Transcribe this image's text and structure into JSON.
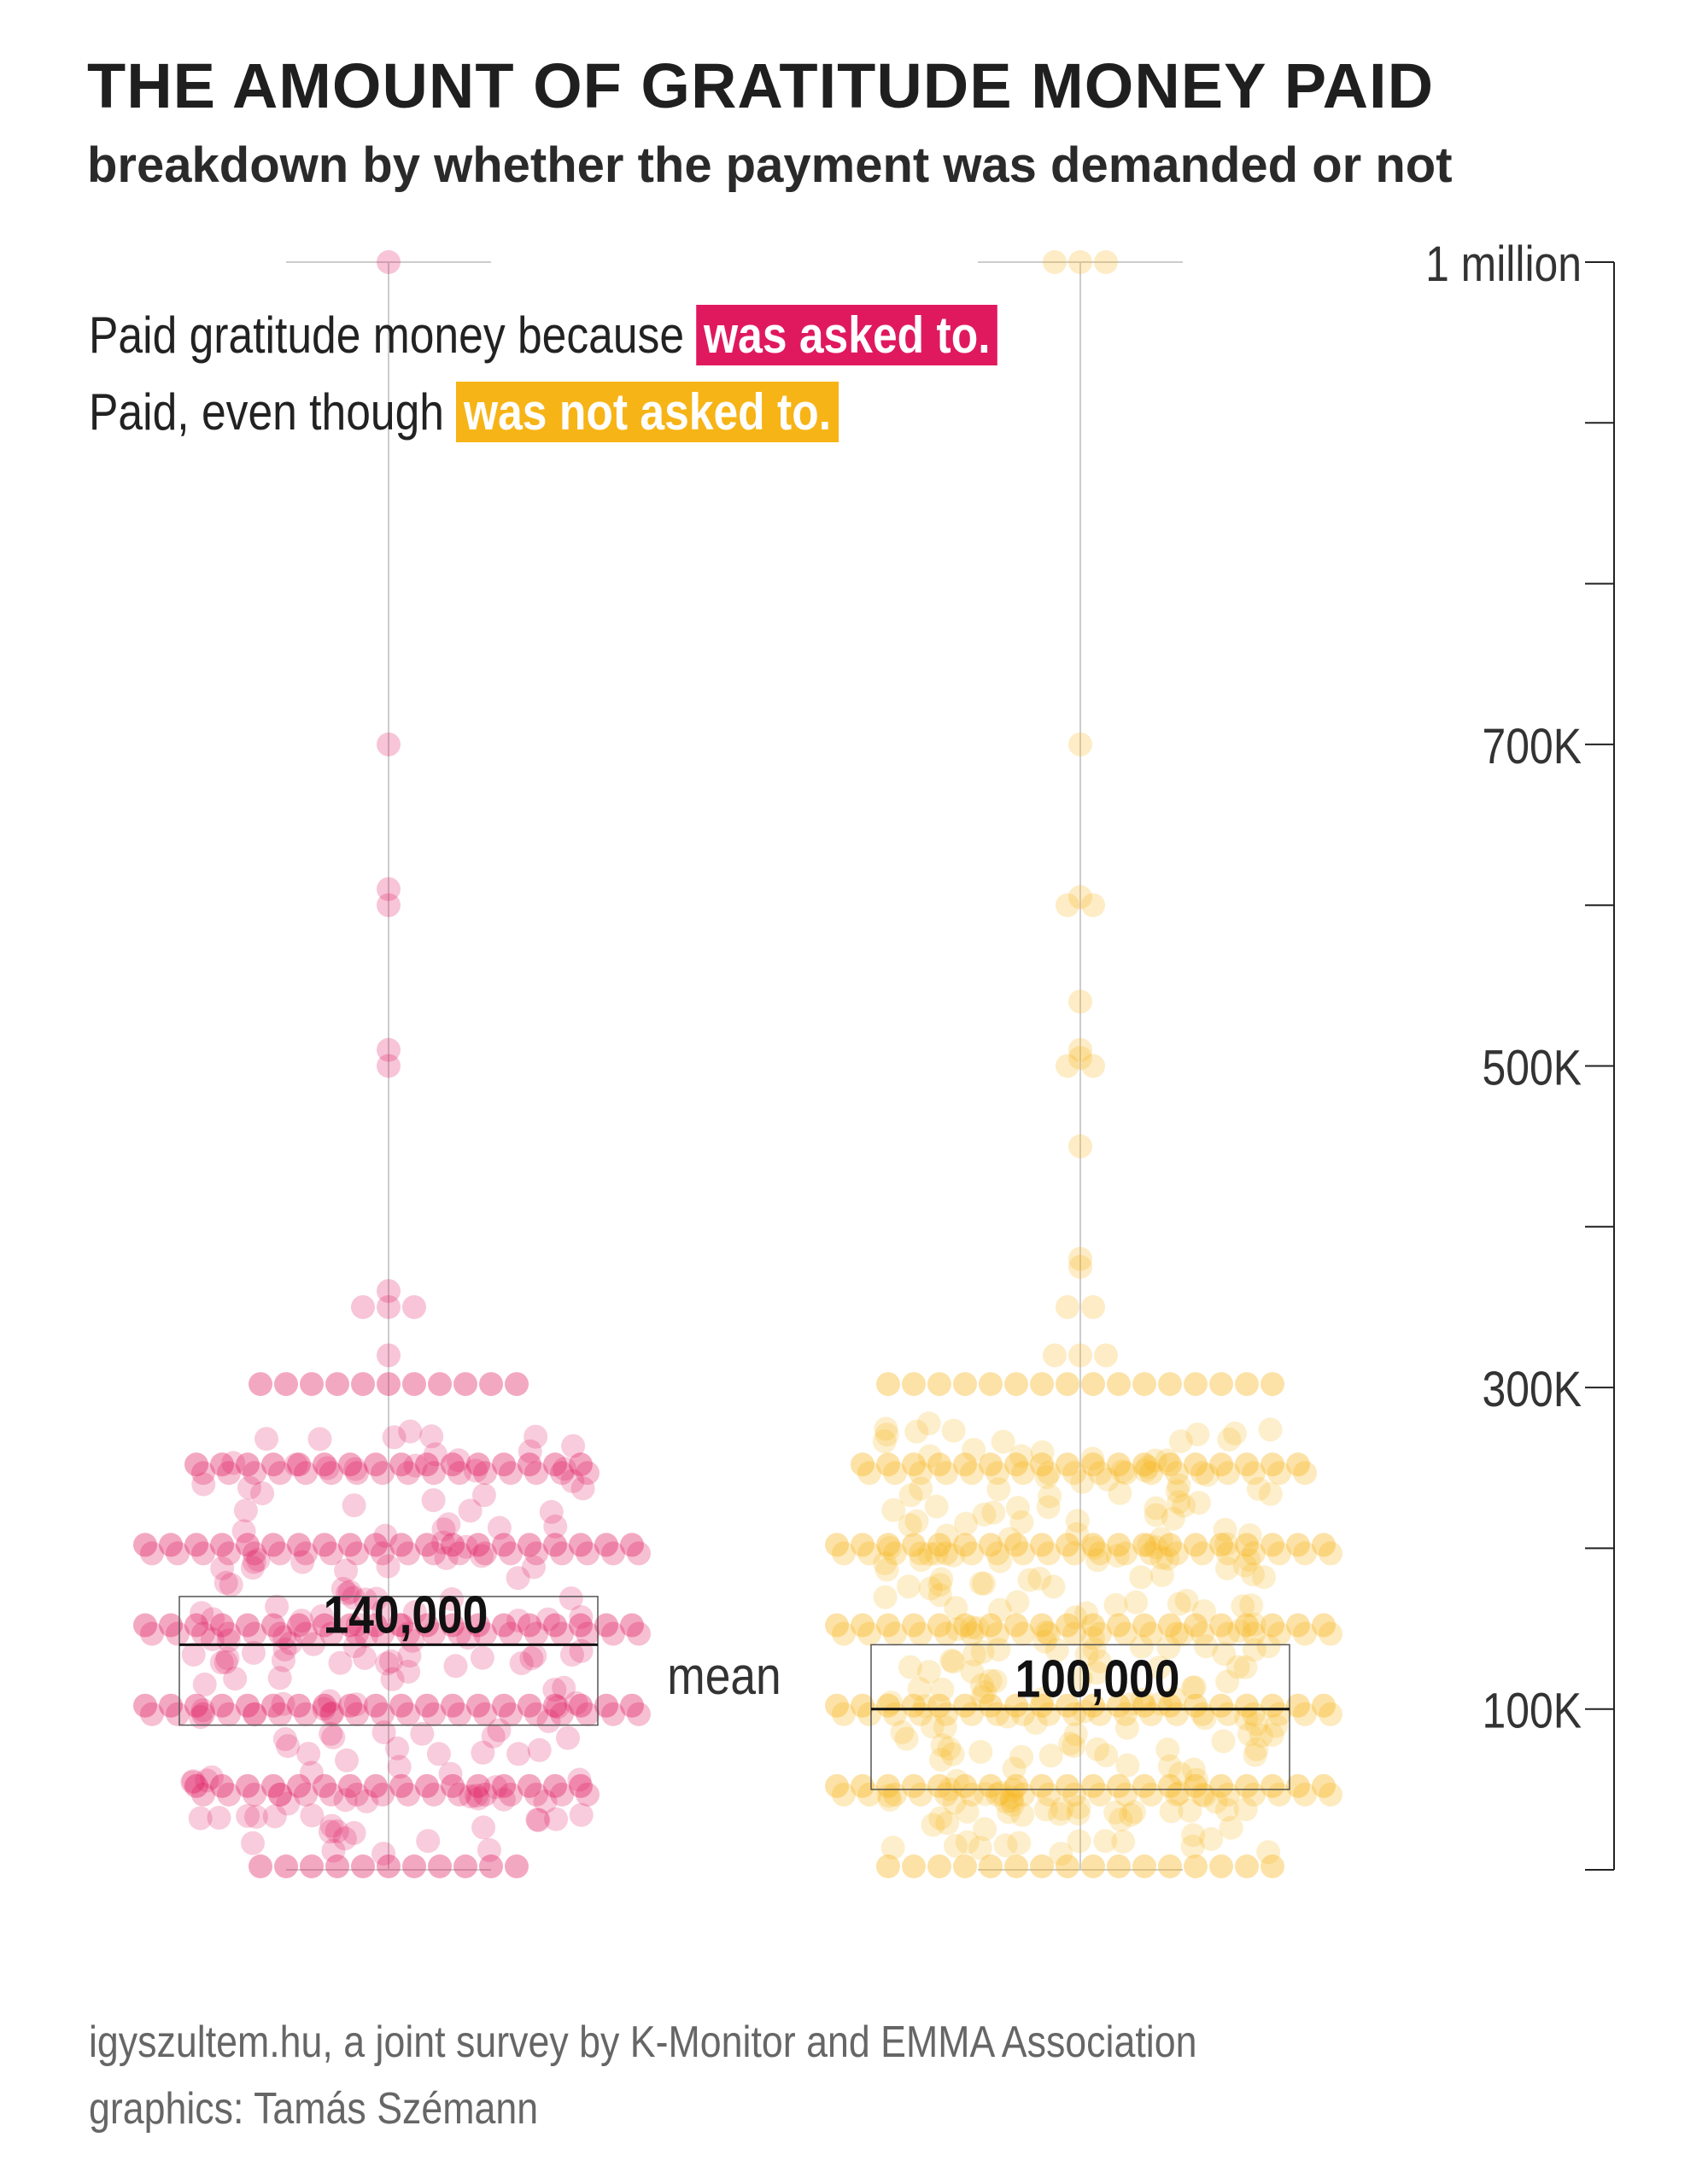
{
  "header": {
    "title": "THE AMOUNT OF GRATITUDE MONEY PAID",
    "subtitle": "breakdown by whether the payment was demanded or not"
  },
  "legend": {
    "line1_prefix": "Paid gratitude money because",
    "line1_highlight": "was asked to.",
    "line2_prefix": "Paid, even though",
    "line2_highlight": "was not asked to."
  },
  "mean_label": "mean",
  "source": {
    "line1": "igyszultem.hu, a joint survey by K-Monitor and EMMA Association",
    "line2": "graphics: Tamás Szémann"
  },
  "colors": {
    "asked": "#e0195f",
    "not_asked": "#f7b417",
    "axis": "#222222",
    "guide": "#cccccc"
  },
  "chart_data": {
    "type": "scatter",
    "ylim": [
      0,
      1000000
    ],
    "y_ticks": [
      0,
      100000,
      200000,
      300000,
      400000,
      500000,
      600000,
      700000,
      800000,
      900000,
      1000000
    ],
    "y_tick_labels": [
      {
        "value": 1000000,
        "label": "1 million"
      },
      {
        "value": 700000,
        "label": "700K"
      },
      {
        "value": 500000,
        "label": "500K"
      },
      {
        "value": 300000,
        "label": "300K"
      },
      {
        "value": 100000,
        "label": "100K"
      }
    ],
    "series": [
      {
        "name": "was asked to.",
        "color": "#e0195f",
        "mean": 140000,
        "mean_label": "140,000",
        "box": [
          90000,
          170000
        ],
        "range": [
          0,
          1000000
        ],
        "outliers": [
          1000000,
          700000,
          610000,
          600000,
          510000,
          500000,
          360000,
          350000,
          350000,
          350000,
          320000
        ],
        "bands": [
          {
            "value": 300000,
            "count": 11
          },
          {
            "value": 250000,
            "count": 16
          },
          {
            "value": 200000,
            "count": 20
          },
          {
            "value": 150000,
            "count": 20
          },
          {
            "value": 100000,
            "count": 20
          },
          {
            "value": 50000,
            "count": 16
          },
          {
            "value": 0,
            "count": 11
          }
        ]
      },
      {
        "name": "was not asked to.",
        "color": "#f7b417",
        "mean": 100000,
        "mean_label": "100,000",
        "box": [
          50000,
          140000
        ],
        "range": [
          0,
          1000000
        ],
        "outliers": [
          1000000,
          1000000,
          1000000,
          700000,
          605000,
          600000,
          600000,
          540000,
          510000,
          505000,
          500000,
          500000,
          450000,
          380000,
          375000,
          350000,
          350000,
          320000,
          320000,
          320000
        ],
        "bands": [
          {
            "value": 300000,
            "count": 16
          },
          {
            "value": 250000,
            "count": 18
          },
          {
            "value": 200000,
            "count": 20
          },
          {
            "value": 150000,
            "count": 20
          },
          {
            "value": 100000,
            "count": 20
          },
          {
            "value": 50000,
            "count": 20
          },
          {
            "value": 0,
            "count": 16
          }
        ]
      }
    ]
  }
}
